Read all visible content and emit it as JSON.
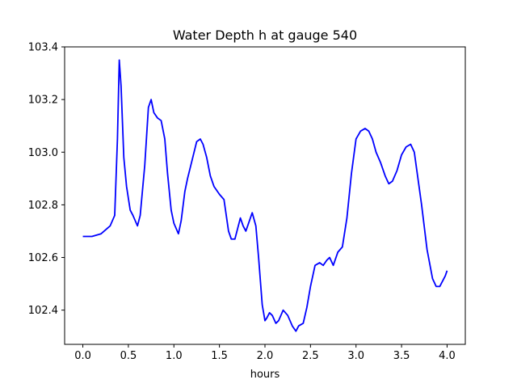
{
  "chart_data": {
    "type": "line",
    "title": "Water Depth h at gauge 540",
    "xlabel": "hours",
    "ylabel": "",
    "xlim": [
      -0.2,
      4.2
    ],
    "ylim": [
      102.27,
      103.4
    ],
    "xticks": [
      0.0,
      0.5,
      1.0,
      1.5,
      2.0,
      2.5,
      3.0,
      3.5,
      4.0
    ],
    "xtick_labels": [
      "0.0",
      "0.5",
      "1.0",
      "1.5",
      "2.0",
      "2.5",
      "3.0",
      "3.5",
      "4.0"
    ],
    "yticks": [
      102.4,
      102.6,
      102.8,
      103.0,
      103.2,
      103.4
    ],
    "ytick_labels": [
      "102.4",
      "102.6",
      "102.8",
      "103.0",
      "103.2",
      "103.4"
    ],
    "grid": false,
    "legend": false,
    "series": [
      {
        "color": "#0000ff",
        "x": [
          0.0,
          0.1,
          0.2,
          0.3,
          0.35,
          0.38,
          0.4,
          0.42,
          0.45,
          0.48,
          0.52,
          0.55,
          0.6,
          0.63,
          0.68,
          0.72,
          0.75,
          0.78,
          0.82,
          0.86,
          0.9,
          0.93,
          0.97,
          1.0,
          1.05,
          1.08,
          1.12,
          1.15,
          1.2,
          1.25,
          1.29,
          1.32,
          1.36,
          1.4,
          1.44,
          1.5,
          1.55,
          1.6,
          1.63,
          1.67,
          1.7,
          1.73,
          1.76,
          1.79,
          1.82,
          1.86,
          1.9,
          1.93,
          1.97,
          2.0,
          2.02,
          2.05,
          2.08,
          2.12,
          2.15,
          2.2,
          2.25,
          2.3,
          2.34,
          2.37,
          2.42,
          2.46,
          2.5,
          2.55,
          2.6,
          2.64,
          2.68,
          2.71,
          2.75,
          2.8,
          2.85,
          2.9,
          2.95,
          3.0,
          3.05,
          3.1,
          3.14,
          3.18,
          3.22,
          3.27,
          3.32,
          3.36,
          3.4,
          3.45,
          3.5,
          3.55,
          3.6,
          3.64,
          3.68,
          3.72,
          3.78,
          3.84,
          3.88,
          3.92,
          3.95,
          3.98,
          4.0
        ],
        "y": [
          102.68,
          102.68,
          102.69,
          102.72,
          102.76,
          103.05,
          103.35,
          103.25,
          102.98,
          102.87,
          102.78,
          102.76,
          102.72,
          102.76,
          102.95,
          103.17,
          103.2,
          103.15,
          103.13,
          103.12,
          103.05,
          102.92,
          102.78,
          102.73,
          102.69,
          102.74,
          102.85,
          102.9,
          102.97,
          103.04,
          103.05,
          103.03,
          102.98,
          102.91,
          102.87,
          102.84,
          102.82,
          102.7,
          102.67,
          102.67,
          102.71,
          102.75,
          102.72,
          102.7,
          102.73,
          102.77,
          102.72,
          102.6,
          102.42,
          102.36,
          102.37,
          102.39,
          102.38,
          102.35,
          102.36,
          102.4,
          102.38,
          102.34,
          102.32,
          102.34,
          102.35,
          102.41,
          102.49,
          102.57,
          102.58,
          102.57,
          102.59,
          102.6,
          102.57,
          102.62,
          102.64,
          102.75,
          102.92,
          103.05,
          103.08,
          103.09,
          103.08,
          103.05,
          103.0,
          102.96,
          102.91,
          102.88,
          102.89,
          102.93,
          102.99,
          103.02,
          103.03,
          103.0,
          102.9,
          102.8,
          102.63,
          102.52,
          102.49,
          102.49,
          102.51,
          102.53,
          102.55
        ]
      }
    ]
  }
}
